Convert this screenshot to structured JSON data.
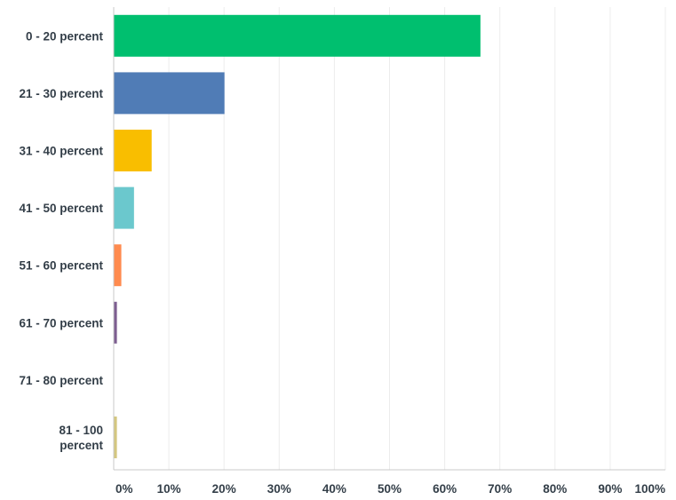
{
  "chart_data": {
    "type": "bar",
    "orientation": "horizontal",
    "categories": [
      [
        "0 - 20 percent"
      ],
      [
        "21 - 30 percent"
      ],
      [
        "31 - 40 percent"
      ],
      [
        "41 - 50 percent"
      ],
      [
        "51 - 60 percent"
      ],
      [
        "61 - 70 percent"
      ],
      [
        "71 - 80 percent"
      ],
      [
        "81 - 100",
        "percent"
      ]
    ],
    "values": [
      66.4,
      20.0,
      6.8,
      3.6,
      1.3,
      0.5,
      0.0,
      0.5
    ],
    "colors": [
      "#00bf6f",
      "#507cb6",
      "#f9be00",
      "#6bc8cd",
      "#ff8b4f",
      "#7d5e90",
      "#d25f90",
      "#d4c77f"
    ],
    "xlim": [
      0,
      100
    ],
    "xticks": [
      "0%",
      "10%",
      "20%",
      "30%",
      "40%",
      "50%",
      "60%",
      "70%",
      "80%",
      "90%",
      "100%"
    ],
    "grid": true,
    "title": "",
    "xlabel": "",
    "ylabel": ""
  }
}
